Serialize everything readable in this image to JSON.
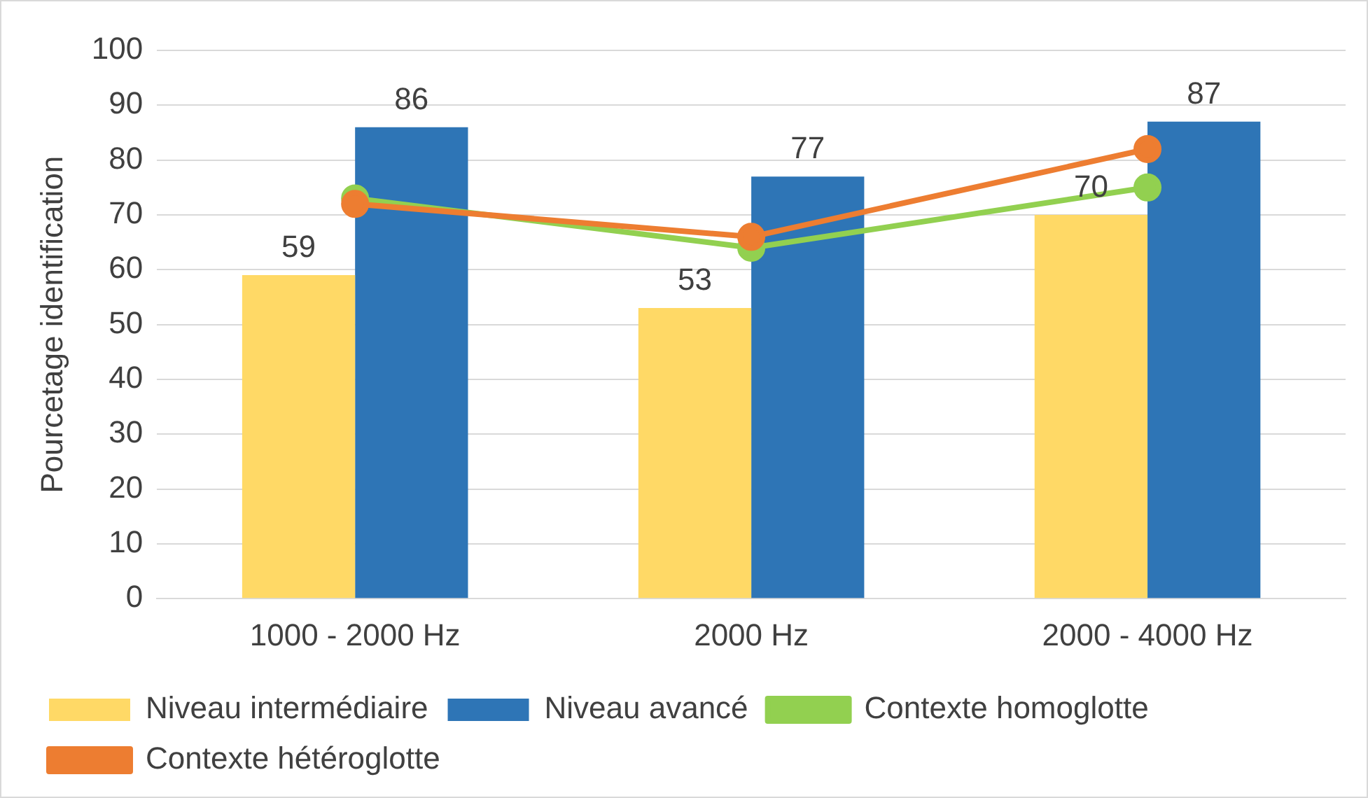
{
  "chart_data": {
    "type": "bar",
    "ylabel": "Pourcetage identification",
    "categories": [
      "1000 - 2000 Hz",
      "2000 Hz",
      "2000 - 4000 Hz"
    ],
    "series": [
      {
        "name": "Niveau intermédiaire",
        "color": "#ffd966",
        "values": [
          59,
          53,
          70
        ],
        "value_labels": [
          "59",
          "53",
          "70"
        ]
      },
      {
        "name": "Niveau avancé",
        "color": "#2e75b6",
        "values": [
          86,
          77,
          87
        ],
        "value_labels": [
          "86",
          "77",
          "87"
        ]
      },
      {
        "name": "Contexte homoglotte",
        "type": "line",
        "color": "#92d050",
        "values": [
          73,
          64,
          75
        ]
      },
      {
        "name": "Contexte hétéroglotte",
        "type": "line",
        "color": "#ed7d31",
        "values": [
          72,
          66,
          82
        ]
      }
    ],
    "ylim": [
      0,
      100
    ],
    "yticks": [
      0,
      10,
      20,
      30,
      40,
      50,
      60,
      70,
      80,
      90,
      100
    ],
    "grid": "y",
    "legend": "bottom",
    "marker": "circle"
  }
}
